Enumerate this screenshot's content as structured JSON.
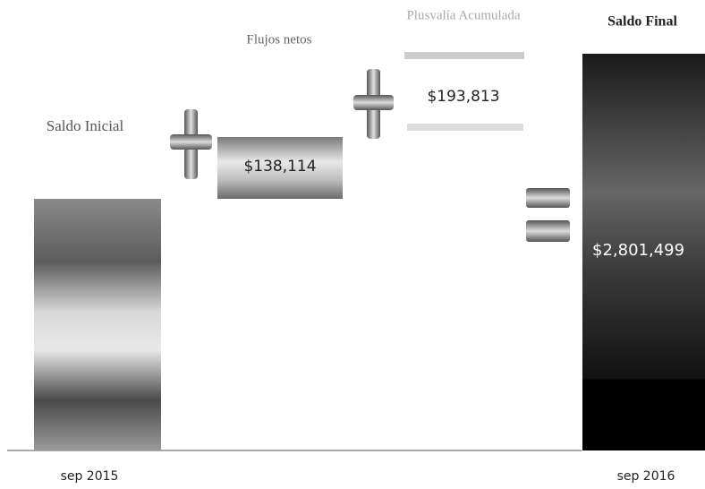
{
  "start": {
    "label": "Saldo Inicial",
    "date": "sep 2015"
  },
  "net_flows": {
    "label": "Flujos netos",
    "value": "$138,114"
  },
  "gains": {
    "label": "Plusvalía Acumulada",
    "value": "$193,813"
  },
  "end": {
    "label": "Saldo Final",
    "value": "$2,801,499",
    "date": "sep 2016"
  }
}
